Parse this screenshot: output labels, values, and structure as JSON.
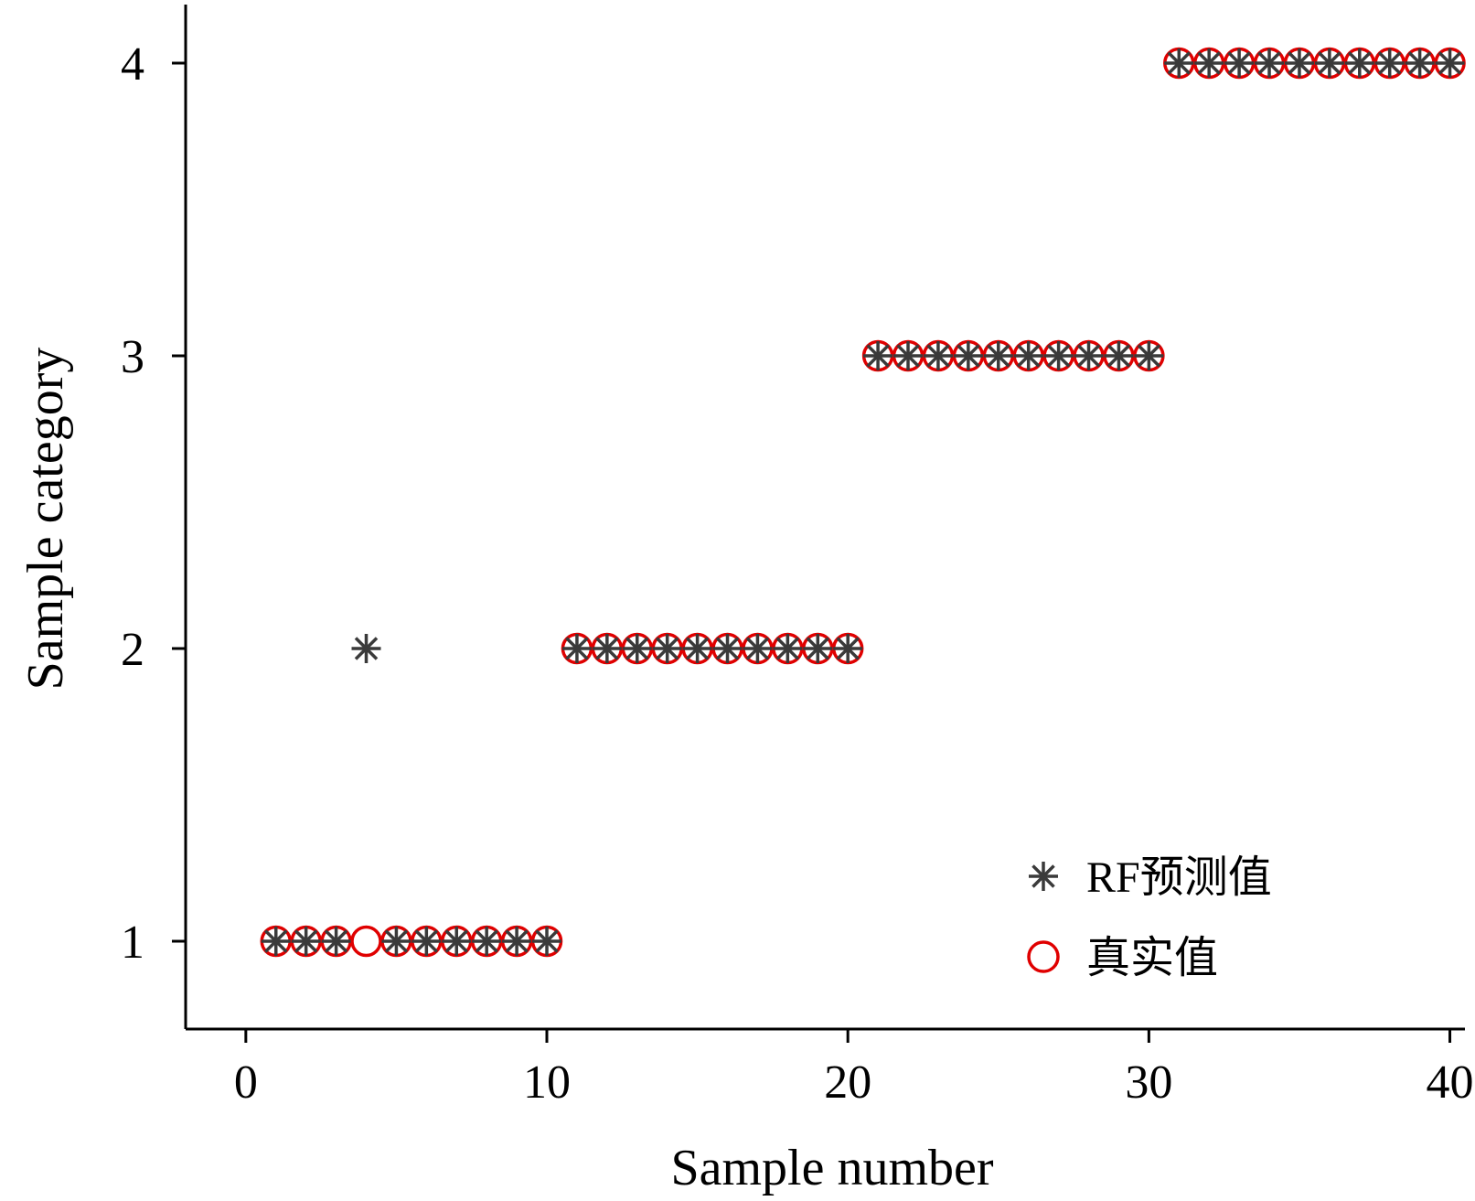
{
  "chart_data": {
    "type": "scatter",
    "title": "",
    "xlabel": "Sample number",
    "ylabel": "Sample category",
    "xlim": [
      -2,
      40.5
    ],
    "ylim": [
      0.7,
      4.2
    ],
    "xticks": [
      0,
      10,
      20,
      30,
      40
    ],
    "yticks": [
      1,
      2,
      3,
      4
    ],
    "grid": false,
    "legend_position": "bottom-right",
    "x": [
      1,
      2,
      3,
      4,
      5,
      6,
      7,
      8,
      9,
      10,
      11,
      12,
      13,
      14,
      15,
      16,
      17,
      18,
      19,
      20,
      21,
      22,
      23,
      24,
      25,
      26,
      27,
      28,
      29,
      30,
      31,
      32,
      33,
      34,
      35,
      36,
      37,
      38,
      39,
      40
    ],
    "series": [
      {
        "name": "RF预测值",
        "marker": "asterisk",
        "color": "#3a3a3a",
        "values": [
          1,
          1,
          1,
          2,
          1,
          1,
          1,
          1,
          1,
          1,
          2,
          2,
          2,
          2,
          2,
          2,
          2,
          2,
          2,
          2,
          3,
          3,
          3,
          3,
          3,
          3,
          3,
          3,
          3,
          3,
          4,
          4,
          4,
          4,
          4,
          4,
          4,
          4,
          4,
          4
        ]
      },
      {
        "name": "真实值",
        "marker": "circle-open",
        "color": "#e00000",
        "values": [
          1,
          1,
          1,
          1,
          1,
          1,
          1,
          1,
          1,
          1,
          2,
          2,
          2,
          2,
          2,
          2,
          2,
          2,
          2,
          2,
          3,
          3,
          3,
          3,
          3,
          3,
          3,
          3,
          3,
          3,
          4,
          4,
          4,
          4,
          4,
          4,
          4,
          4,
          4,
          4
        ]
      }
    ]
  }
}
